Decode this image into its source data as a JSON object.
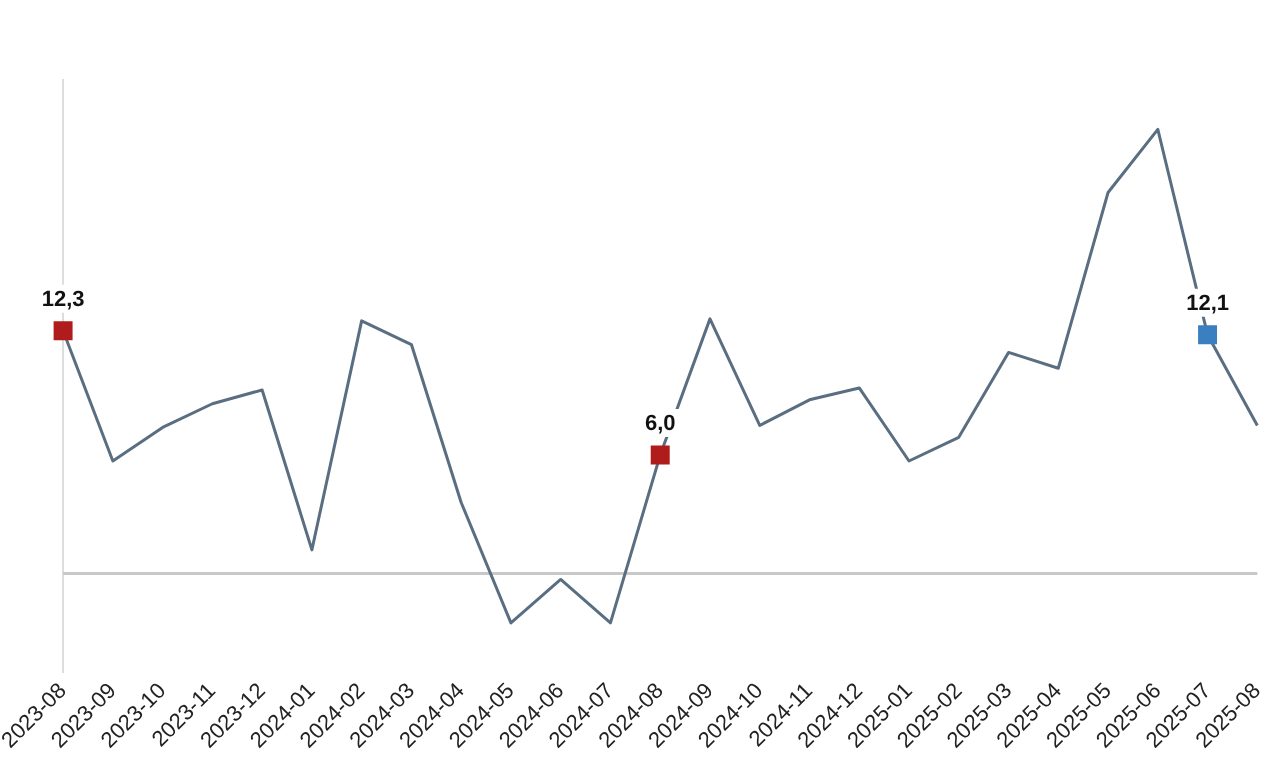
{
  "chart_data": {
    "type": "line",
    "categories": [
      "2023-08",
      "2023-09",
      "2023-10",
      "2023-11",
      "2023-12",
      "2024-01",
      "2024-02",
      "2024-03",
      "2024-04",
      "2024-05",
      "2024-06",
      "2024-07",
      "2024-08",
      "2024-09",
      "2024-10",
      "2024-11",
      "2024-12",
      "2025-01",
      "2025-02",
      "2025-03",
      "2025-04",
      "2025-05",
      "2025-06",
      "2025-07",
      "2025-08"
    ],
    "series": [
      {
        "color": "#5a6e82",
        "marker": "none",
        "values": [
          12.3,
          5.7,
          7.4,
          8.6,
          9.3,
          1.2,
          12.8,
          11.6,
          3.6,
          -2.5,
          -0.3,
          -2.5,
          6.0,
          12.9,
          7.5,
          8.8,
          9.4,
          5.7,
          6.9,
          11.2,
          10.4,
          19.3,
          22.5,
          12.1,
          7.5
        ]
      },
      {
        "type": "scatter",
        "marker": "square",
        "color": "#b01c1c",
        "values": [
          12.3,
          null,
          null,
          null,
          null,
          null,
          null,
          null,
          null,
          null,
          null,
          null,
          6.0,
          null,
          null,
          null,
          null,
          null,
          null,
          null,
          null,
          null,
          null,
          12.1,
          null
        ],
        "colors": [
          "#b01c1c",
          null,
          null,
          null,
          null,
          null,
          null,
          null,
          null,
          null,
          null,
          null,
          "#b01c1c",
          null,
          null,
          null,
          null,
          null,
          null,
          null,
          null,
          null,
          null,
          "#3a7fc0",
          null
        ],
        "value_labels": [
          "12,3",
          null,
          null,
          null,
          null,
          null,
          null,
          null,
          null,
          null,
          null,
          null,
          "6,0",
          null,
          null,
          null,
          null,
          null,
          null,
          null,
          null,
          null,
          null,
          "12,1",
          null
        ]
      }
    ],
    "ylim": [
      -5,
      25
    ],
    "tick_labels": "x",
    "grid": false,
    "legend": false,
    "ref_lines": [
      {
        "axis": "y",
        "value": 0,
        "color": "#c8c8c8"
      }
    ]
  }
}
